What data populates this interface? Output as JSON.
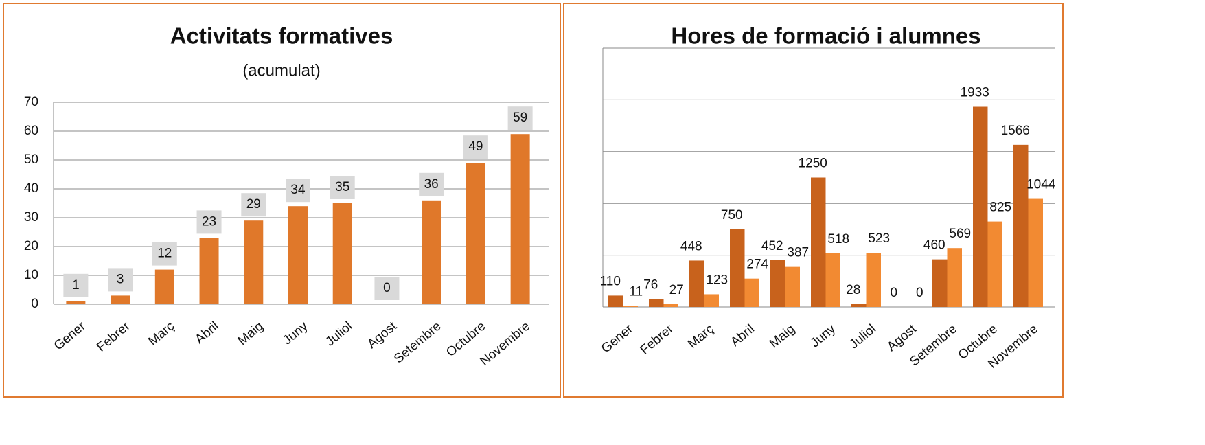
{
  "chart_data": [
    {
      "type": "bar",
      "title": "Activitats formatives",
      "subtitle": "(acumulat)",
      "categories": [
        "Gener",
        "Febrer",
        "Març",
        "Abril",
        "Maig",
        "Juny",
        "Juliol",
        "Agost",
        "Setembre",
        "Octubre",
        "Novembre"
      ],
      "values": [
        1,
        3,
        12,
        23,
        29,
        34,
        35,
        0,
        36,
        49,
        59
      ],
      "color": "#e0782a",
      "ylim": [
        0,
        70
      ],
      "yticks": [
        0,
        10,
        20,
        30,
        40,
        50,
        60,
        70
      ],
      "grid": true,
      "data_labels": true
    },
    {
      "type": "grouped_bar",
      "title": "Hores de formació i alumnes",
      "categories": [
        "Gener",
        "Febrer",
        "Març",
        "Abril",
        "Maig",
        "Juny",
        "Juliol",
        "Agost",
        "Setembre",
        "Octubre",
        "Novembre"
      ],
      "series": [
        {
          "color": "#c8621c",
          "values": [
            110,
            76,
            448,
            750,
            452,
            1250,
            28,
            0,
            460,
            1933,
            1566
          ]
        },
        {
          "color": "#f28a32",
          "values": [
            11,
            27,
            123,
            274,
            387,
            518,
            523,
            0,
            569,
            825,
            1044
          ]
        }
      ],
      "ylim": [
        0,
        2500
      ],
      "yticks": [
        0,
        500,
        1000,
        1500,
        2000,
        2500
      ],
      "tick_labels": false,
      "grid": true,
      "data_labels": true
    }
  ]
}
